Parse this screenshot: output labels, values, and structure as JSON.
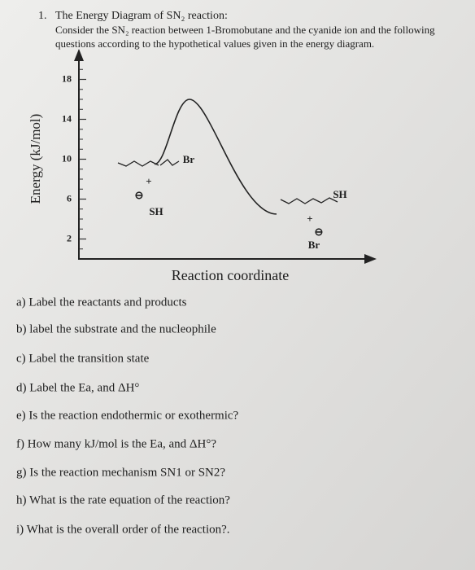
{
  "header": {
    "number": "1.",
    "title": "The Energy Diagram of SN₂ reaction:",
    "lines": [
      "Consider the SN₂ reaction between 1-Bromobutane and the cyanide ion and the following",
      "questions according to the hypothetical values given in the energy diagram."
    ]
  },
  "chart_data": {
    "type": "line",
    "y_label": "Energy (kJ/mol)",
    "x_label": "Reaction coordinate",
    "categories": [
      null,
      null,
      null
    ],
    "values": [
      9.5,
      16,
      4.5
    ],
    "color": "#222222",
    "ylim": [
      0,
      20
    ],
    "yticks": [
      2,
      6,
      10,
      14,
      18
    ],
    "annotations": [
      "Br",
      "+",
      "⊖",
      "SH",
      "SH",
      "+",
      "⊖",
      "Br"
    ]
  },
  "questions": [
    "a) Label the reactants and products",
    "b) label the substrate and the nucleophile",
    "c) Label the transition state",
    "d) Label the Ea, and ΔH°",
    "e) Is the reaction endothermic or exothermic?",
    "f) How many kJ/mol is the Ea, and ΔH°?",
    "g) Is the reaction mechanism SN1 or SN2?",
    "h) What is the rate equation of the reaction?",
    "i) What is the overall order of the reaction?."
  ]
}
